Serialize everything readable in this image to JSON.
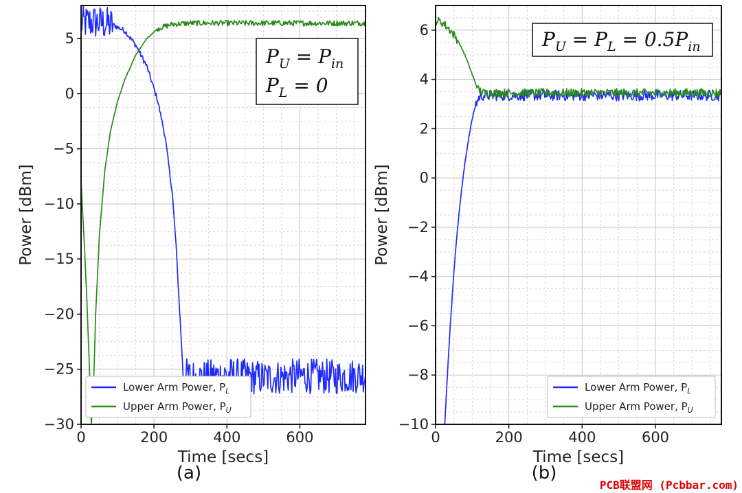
{
  "chart_data": [
    {
      "type": "line",
      "panel_label": "(a)",
      "xlabel": "Time [secs]",
      "ylabel": "Power [dBm]",
      "xlim": [
        0,
        780
      ],
      "ylim": [
        -30,
        8
      ],
      "xticks": [
        "0",
        "200",
        "400",
        "600"
      ],
      "xtick_values": [
        0,
        200,
        400,
        600
      ],
      "yticks": [
        "−30",
        "−25",
        "−20",
        "−15",
        "−10",
        "−5",
        "0",
        "5"
      ],
      "ytick_values": [
        -30,
        -25,
        -20,
        -15,
        -10,
        -5,
        0,
        5
      ],
      "grid": true,
      "legend_position": "lower-left",
      "annotation": {
        "lines": [
          [
            {
              "t": "P"
            },
            {
              "sub": "U"
            },
            {
              "t": " = P"
            },
            {
              "sub": "in"
            }
          ],
          [
            {
              "t": "P"
            },
            {
              "sub": "L"
            },
            {
              "t": " = 0"
            }
          ]
        ]
      },
      "series": [
        {
          "name": "Lower Arm Power, P",
          "name_sub": "L",
          "color": "#1f2bff",
          "x": [
            0,
            30,
            60,
            90,
            120,
            150,
            180,
            210,
            230,
            250,
            260,
            270,
            275,
            280,
            320,
            400,
            500,
            600,
            700,
            780
          ],
          "y": [
            6.4,
            6.5,
            6.4,
            6.2,
            5.7,
            4.4,
            2.5,
            -0.6,
            -3.8,
            -9.0,
            -13.5,
            -19.5,
            -22.5,
            -25.5,
            -25.8,
            -25.5,
            -25.8,
            -25.6,
            -25.7,
            -25.5
          ],
          "noise": 1.6
        },
        {
          "name": "Upper Arm Power, P",
          "name_sub": "U",
          "color": "#2a8a17",
          "x": [
            0,
            8,
            15,
            22,
            28,
            33,
            40,
            50,
            65,
            80,
            100,
            120,
            150,
            180,
            210,
            250,
            300,
            400,
            500,
            600,
            700,
            780
          ],
          "y": [
            -8,
            -13,
            -18,
            -24,
            -30,
            -28,
            -20,
            -13,
            -7,
            -3.5,
            -0.7,
            1.3,
            3.5,
            5.0,
            5.9,
            6.3,
            6.4,
            6.4,
            6.4,
            6.4,
            6.4,
            6.4
          ],
          "noise": 0.25
        }
      ]
    },
    {
      "type": "line",
      "panel_label": "(b)",
      "xlabel": "Time [secs]",
      "ylabel": "Power [dBm]",
      "xlim": [
        0,
        780
      ],
      "ylim": [
        -10,
        7
      ],
      "xticks": [
        "0",
        "200",
        "400",
        "600"
      ],
      "xtick_values": [
        0,
        200,
        400,
        600
      ],
      "yticks": [
        "−10",
        "−8",
        "−6",
        "−4",
        "−2",
        "0",
        "2",
        "4",
        "6"
      ],
      "ytick_values": [
        -10,
        -8,
        -6,
        -4,
        -2,
        0,
        2,
        4,
        6
      ],
      "grid": true,
      "legend_position": "lower-right",
      "annotation": {
        "lines": [
          [
            {
              "t": "P"
            },
            {
              "sub": "U"
            },
            {
              "t": " = P"
            },
            {
              "sub": "L"
            },
            {
              "t": " = 0.5P"
            },
            {
              "sub": "in"
            }
          ]
        ]
      },
      "series": [
        {
          "name": "Lower Arm Power, P",
          "name_sub": "L",
          "color": "#1f2bff",
          "x": [
            25,
            30,
            40,
            50,
            60,
            70,
            80,
            90,
            100,
            110,
            120,
            130,
            200,
            300,
            400,
            500,
            600,
            700,
            780
          ],
          "y": [
            -10,
            -8.6,
            -6.0,
            -3.8,
            -2.0,
            -0.6,
            0.6,
            1.6,
            2.4,
            3.0,
            3.3,
            3.35,
            3.35,
            3.35,
            3.35,
            3.35,
            3.35,
            3.35,
            3.35
          ],
          "noise": 0.22
        },
        {
          "name": "Upper Arm Power, P",
          "name_sub": "U",
          "color": "#2a8a17",
          "x": [
            0,
            20,
            40,
            60,
            80,
            100,
            115,
            130,
            200,
            300,
            400,
            500,
            600,
            700,
            780
          ],
          "y": [
            6.4,
            6.3,
            6.0,
            5.6,
            5.0,
            4.2,
            3.6,
            3.45,
            3.45,
            3.45,
            3.45,
            3.45,
            3.45,
            3.45,
            3.45
          ],
          "noise": 0.18
        }
      ]
    }
  ],
  "watermark": "PCB联盟网 (Pcbbar.com)"
}
